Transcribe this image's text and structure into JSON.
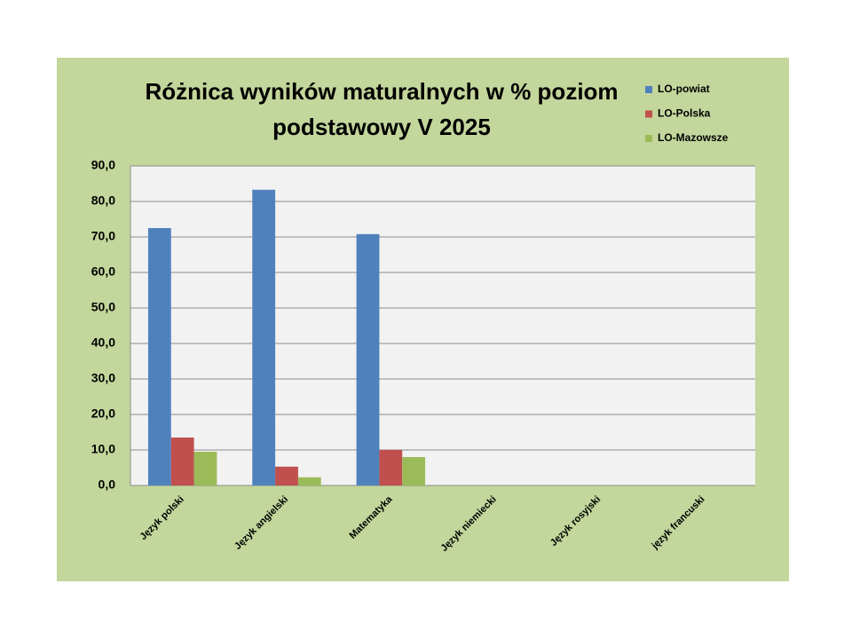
{
  "chart_data": {
    "type": "bar",
    "title": [
      "Różnica wyników maturalnych w % poziom",
      "podstawowy V 2025"
    ],
    "categories": [
      "Język polski",
      "Język angielski",
      "Matematyka",
      "Język niemiecki",
      "Język rosyjski",
      "język francuski"
    ],
    "series": [
      {
        "name": "LO-powiat",
        "color": "#4f81bd",
        "values": [
          72.5,
          83.3,
          70.8,
          null,
          null,
          null
        ]
      },
      {
        "name": "LO-Polska",
        "color": "#c0504d",
        "values": [
          13.5,
          5.3,
          10.0,
          null,
          null,
          null
        ]
      },
      {
        "name": "LO-Mazowsze",
        "color": "#9bbb59",
        "values": [
          9.5,
          2.3,
          8.0,
          null,
          null,
          null
        ]
      }
    ],
    "ylim": [
      0,
      90
    ],
    "yticks": [
      {
        "value": 0,
        "label": "0,0"
      },
      {
        "value": 10,
        "label": "10,0"
      },
      {
        "value": 20,
        "label": "20,0"
      },
      {
        "value": 30,
        "label": "30,0"
      },
      {
        "value": 40,
        "label": "40,0"
      },
      {
        "value": 50,
        "label": "50,0"
      },
      {
        "value": 60,
        "label": "60,0"
      },
      {
        "value": 70,
        "label": "70,0"
      },
      {
        "value": 80,
        "label": "80,0"
      },
      {
        "value": 90,
        "label": "90,0"
      }
    ],
    "grid": true,
    "legend": "top-right"
  }
}
